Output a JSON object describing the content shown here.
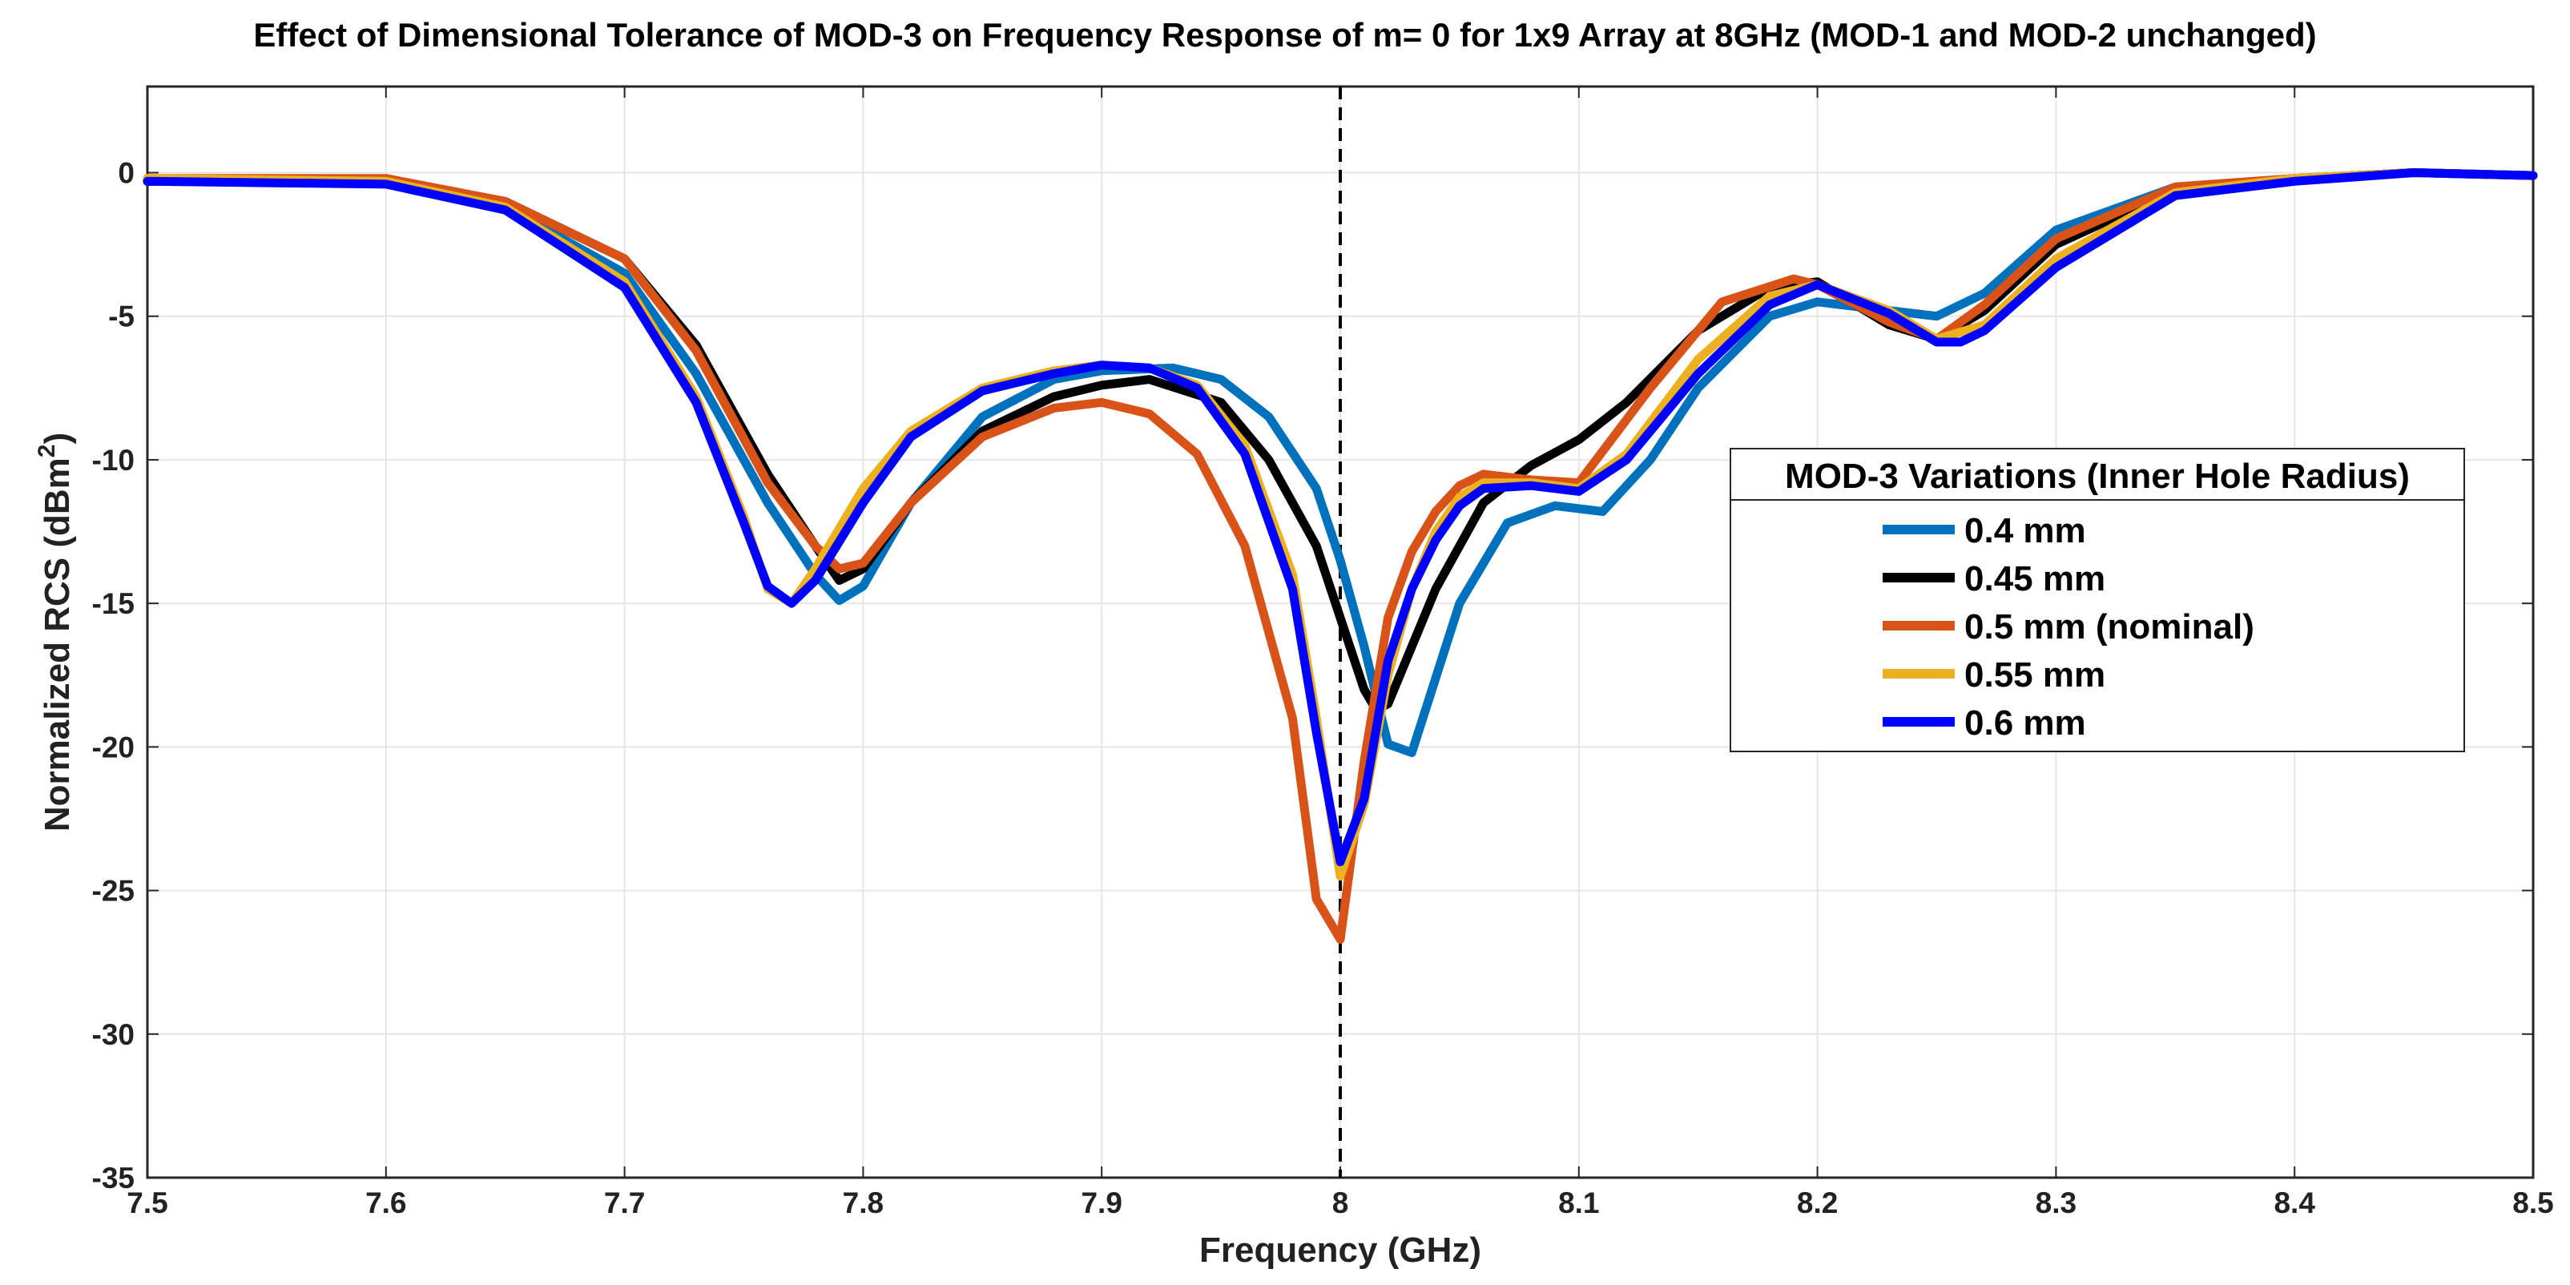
{
  "chart_data": {
    "type": "line",
    "title": "Effect of Dimensional Tolerance of MOD-3 on Frequency Response of m= 0 for 1x9 Array at 8GHz (MOD-1 and MOD-2 unchanged)",
    "xlabel": "Frequency (GHz)",
    "ylabel_main": "Normalized RCS (dBm",
    "ylabel_sup": "2",
    "ylabel_close": ")",
    "xlim": [
      7.5,
      8.5
    ],
    "ylim": [
      -35,
      3
    ],
    "xticks": [
      7.5,
      7.6,
      7.7,
      7.8,
      7.9,
      8,
      8.1,
      8.2,
      8.3,
      8.4,
      8.5
    ],
    "xtick_labels": [
      "7.5",
      "7.6",
      "7.7",
      "7.8",
      "7.9",
      "8",
      "8.1",
      "8.2",
      "8.3",
      "8.4",
      "8.5"
    ],
    "yticks": [
      0,
      -5,
      -10,
      -15,
      -20,
      -25,
      -30,
      -35
    ],
    "ytick_labels": [
      "0",
      "-5",
      "-10",
      "-15",
      "-20",
      "-25",
      "-30",
      "-35"
    ],
    "grid": true,
    "reference_line": {
      "x": 8,
      "style": "dashed",
      "color": "#000000"
    },
    "legend": {
      "title": "MOD-3 Variations (Inner Hole Radius)",
      "placement": "right"
    },
    "series": [
      {
        "name": "0.4 mm",
        "color": "#0072BD",
        "x": [
          7.5,
          7.6,
          7.65,
          7.7,
          7.73,
          7.76,
          7.78,
          7.79,
          7.8,
          7.82,
          7.85,
          7.88,
          7.9,
          7.93,
          7.95,
          7.97,
          7.99,
          8.0,
          8.01,
          8.02,
          8.03,
          8.05,
          8.07,
          8.09,
          8.11,
          8.13,
          8.15,
          8.18,
          8.2,
          8.23,
          8.25,
          8.27,
          8.3,
          8.35,
          8.4,
          8.45,
          8.5
        ],
        "y": [
          -0.3,
          -0.3,
          -1.2,
          -3.5,
          -7.0,
          -11.5,
          -14.0,
          -14.9,
          -14.4,
          -11.5,
          -8.5,
          -7.2,
          -6.9,
          -6.8,
          -7.2,
          -8.5,
          -11.0,
          -13.5,
          -16.5,
          -19.9,
          -20.2,
          -15.0,
          -12.2,
          -11.6,
          -11.8,
          -10.0,
          -7.5,
          -5.0,
          -4.5,
          -4.8,
          -5.0,
          -4.2,
          -2.0,
          -0.5,
          -0.2,
          0.0,
          -0.1
        ]
      },
      {
        "name": "0.45 mm",
        "color": "#000000",
        "x": [
          7.5,
          7.6,
          7.65,
          7.7,
          7.73,
          7.76,
          7.78,
          7.79,
          7.8,
          7.82,
          7.85,
          7.88,
          7.9,
          7.92,
          7.95,
          7.97,
          7.99,
          8.0,
          8.01,
          8.015,
          8.02,
          8.04,
          8.06,
          8.08,
          8.1,
          8.12,
          8.15,
          8.18,
          8.2,
          8.23,
          8.25,
          8.27,
          8.3,
          8.35,
          8.4,
          8.45,
          8.5
        ],
        "y": [
          -0.3,
          -0.3,
          -1.0,
          -3.0,
          -6.0,
          -10.5,
          -13.0,
          -14.2,
          -13.8,
          -11.5,
          -9.0,
          -7.8,
          -7.4,
          -7.2,
          -8.0,
          -10.0,
          -13.0,
          -15.5,
          -18.0,
          -18.7,
          -18.5,
          -14.5,
          -11.5,
          -10.2,
          -9.3,
          -8.0,
          -5.5,
          -4.0,
          -3.8,
          -5.3,
          -5.8,
          -4.8,
          -2.5,
          -0.6,
          -0.2,
          0.0,
          -0.1
        ]
      },
      {
        "name": "0.5 mm (nominal)",
        "color": "#D95319",
        "x": [
          7.5,
          7.6,
          7.65,
          7.7,
          7.73,
          7.76,
          7.78,
          7.79,
          7.8,
          7.82,
          7.85,
          7.88,
          7.9,
          7.92,
          7.94,
          7.96,
          7.98,
          7.99,
          8.0,
          8.01,
          8.02,
          8.03,
          8.04,
          8.05,
          8.06,
          8.08,
          8.1,
          8.13,
          8.16,
          8.19,
          8.2,
          8.23,
          8.25,
          8.27,
          8.3,
          8.35,
          8.4,
          8.45,
          8.5
        ],
        "y": [
          -0.2,
          -0.2,
          -1.0,
          -3.0,
          -6.2,
          -10.8,
          -13.0,
          -13.8,
          -13.6,
          -11.5,
          -9.2,
          -8.2,
          -8.0,
          -8.4,
          -9.8,
          -13.0,
          -19.0,
          -25.3,
          -26.7,
          -20.5,
          -15.5,
          -13.2,
          -11.8,
          -10.9,
          -10.5,
          -10.7,
          -10.8,
          -7.5,
          -4.5,
          -3.7,
          -3.9,
          -5.2,
          -5.8,
          -4.6,
          -2.3,
          -0.5,
          -0.2,
          0.0,
          -0.1
        ]
      },
      {
        "name": "0.55 mm",
        "color": "#EDB120",
        "x": [
          7.5,
          7.6,
          7.65,
          7.7,
          7.73,
          7.75,
          7.76,
          7.77,
          7.78,
          7.8,
          7.82,
          7.85,
          7.88,
          7.9,
          7.92,
          7.94,
          7.96,
          7.98,
          7.99,
          8.0,
          8.01,
          8.02,
          8.03,
          8.04,
          8.05,
          8.06,
          8.08,
          8.1,
          8.12,
          8.15,
          8.18,
          8.2,
          8.23,
          8.25,
          8.27,
          8.3,
          8.35,
          8.4,
          8.45,
          8.5
        ],
        "y": [
          -0.2,
          -0.3,
          -1.2,
          -3.8,
          -7.8,
          -12.0,
          -14.5,
          -15.0,
          -13.8,
          -11.0,
          -9.0,
          -7.5,
          -6.9,
          -6.7,
          -6.8,
          -7.4,
          -9.5,
          -14.0,
          -19.0,
          -24.5,
          -22.0,
          -17.5,
          -14.5,
          -12.5,
          -11.3,
          -10.8,
          -10.8,
          -11.0,
          -9.8,
          -6.5,
          -4.3,
          -3.9,
          -4.8,
          -5.8,
          -5.3,
          -3.0,
          -0.7,
          -0.2,
          0.0,
          -0.1
        ]
      },
      {
        "name": "0.6 mm",
        "color": "#0000FF",
        "x": [
          7.5,
          7.6,
          7.65,
          7.7,
          7.73,
          7.75,
          7.76,
          7.77,
          7.78,
          7.8,
          7.82,
          7.85,
          7.88,
          7.9,
          7.92,
          7.94,
          7.96,
          7.98,
          7.99,
          8.0,
          8.01,
          8.02,
          8.03,
          8.04,
          8.05,
          8.06,
          8.08,
          8.1,
          8.12,
          8.15,
          8.18,
          8.2,
          8.23,
          8.25,
          8.26,
          8.27,
          8.3,
          8.35,
          8.4,
          8.45,
          8.5
        ],
        "y": [
          -0.3,
          -0.4,
          -1.3,
          -4.0,
          -8.0,
          -12.2,
          -14.4,
          -15.0,
          -14.2,
          -11.5,
          -9.2,
          -7.6,
          -7.0,
          -6.7,
          -6.8,
          -7.5,
          -9.8,
          -14.5,
          -19.5,
          -24.0,
          -21.8,
          -17.0,
          -14.5,
          -12.8,
          -11.6,
          -11.0,
          -10.9,
          -11.1,
          -10.0,
          -7.0,
          -4.6,
          -3.9,
          -4.9,
          -5.9,
          -5.9,
          -5.5,
          -3.3,
          -0.8,
          -0.3,
          0.0,
          -0.1
        ]
      }
    ]
  }
}
